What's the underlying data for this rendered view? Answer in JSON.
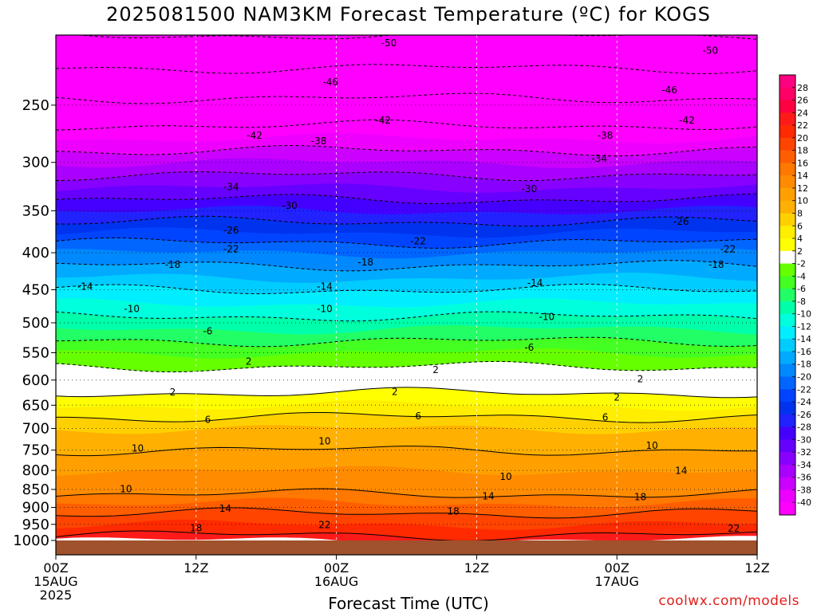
{
  "title": "2025081500 NAM3KM Forecast Temperature (ºC) for KOGS",
  "watermark": "coolwx.com/models",
  "chart_data": {
    "type": "heatmap",
    "title": "2025081500 NAM3KM Forecast Temperature (ºC) for KOGS",
    "xlabel": "Forecast Time (UTC)",
    "ylabel": "",
    "x_ticks": [
      {
        "hour": 0,
        "label": [
          "00Z",
          "15AUG",
          "2025"
        ]
      },
      {
        "hour": 12,
        "label": [
          "12Z"
        ]
      },
      {
        "hour": 24,
        "label": [
          "00Z",
          "16AUG"
        ]
      },
      {
        "hour": 36,
        "label": [
          "12Z"
        ]
      },
      {
        "hour": 48,
        "label": [
          "00Z",
          "17AUG"
        ]
      },
      {
        "hour": 60,
        "label": [
          "12Z"
        ]
      }
    ],
    "xlim": [
      0,
      60
    ],
    "y_ticks": [
      250,
      300,
      350,
      400,
      450,
      500,
      550,
      600,
      650,
      700,
      750,
      800,
      850,
      900,
      950,
      1000
    ],
    "ylim_hpa": [
      200,
      1000
    ],
    "y_scale": "log",
    "colorbar_levels": [
      28,
      26,
      24,
      22,
      20,
      18,
      16,
      14,
      12,
      10,
      8,
      6,
      4,
      2,
      -2,
      -4,
      -6,
      -8,
      -10,
      -12,
      -14,
      -16,
      -18,
      -20,
      -22,
      -24,
      -26,
      -28,
      -30,
      -32,
      -34,
      -36,
      -38,
      -40
    ],
    "colorbar_colors": [
      "#ff0080",
      "#ff0066",
      "#ff0040",
      "#ff1a1a",
      "#ff2a00",
      "#ff4400",
      "#ff5e00",
      "#ff7800",
      "#ff8c00",
      "#ffa000",
      "#ffb000",
      "#ffd000",
      "#ffee00",
      "#ffff00",
      "#ffffff",
      "#66ff00",
      "#44ff22",
      "#22ff66",
      "#00ffaa",
      "#00ffdd",
      "#00eeff",
      "#00ccff",
      "#00aaff",
      "#0088ff",
      "#0066ff",
      "#0044ff",
      "#0033ee",
      "#2222ff",
      "#4400ff",
      "#6600ff",
      "#8800ff",
      "#aa00ff",
      "#cc00ff",
      "#ee00ff",
      "#ff00ff"
    ],
    "level_temperature_profile": [
      {
        "p": 200,
        "t": -54
      },
      {
        "p": 250,
        "t": -45
      },
      {
        "p": 300,
        "t": -36
      },
      {
        "p": 350,
        "t": -28
      },
      {
        "p": 400,
        "t": -20
      },
      {
        "p": 450,
        "t": -14
      },
      {
        "p": 500,
        "t": -9
      },
      {
        "p": 550,
        "t": -4
      },
      {
        "p": 600,
        "t": 0
      },
      {
        "p": 650,
        "t": 4
      },
      {
        "p": 700,
        "t": 8
      },
      {
        "p": 750,
        "t": 10
      },
      {
        "p": 800,
        "t": 12
      },
      {
        "p": 850,
        "t": 13
      },
      {
        "p": 900,
        "t": 17
      },
      {
        "p": 950,
        "t": 20
      },
      {
        "p": 1000,
        "t": 23
      }
    ],
    "contour_labels": [
      {
        "hour": 28.5,
        "p": 205,
        "v": "-50"
      },
      {
        "hour": 56,
        "p": 210,
        "v": "-50"
      },
      {
        "hour": 23.5,
        "p": 232,
        "v": "-46"
      },
      {
        "hour": 52.5,
        "p": 238,
        "v": "-46"
      },
      {
        "hour": 28,
        "p": 262,
        "v": "-42"
      },
      {
        "hour": 17,
        "p": 275,
        "v": "-42"
      },
      {
        "hour": 54,
        "p": 262,
        "v": "-42"
      },
      {
        "hour": 22.5,
        "p": 280,
        "v": "-38"
      },
      {
        "hour": 47,
        "p": 275,
        "v": "-38"
      },
      {
        "hour": 46.5,
        "p": 296,
        "v": "-34"
      },
      {
        "hour": 15,
        "p": 324,
        "v": "-34"
      },
      {
        "hour": 40.5,
        "p": 326,
        "v": "-30"
      },
      {
        "hour": 20,
        "p": 344,
        "v": "-30"
      },
      {
        "hour": 53.5,
        "p": 362,
        "v": "-26"
      },
      {
        "hour": 15,
        "p": 372,
        "v": "-26"
      },
      {
        "hour": 31,
        "p": 385,
        "v": "-22"
      },
      {
        "hour": 15,
        "p": 395,
        "v": "-22"
      },
      {
        "hour": 57.5,
        "p": 395,
        "v": "-22"
      },
      {
        "hour": 10,
        "p": 415,
        "v": "-18"
      },
      {
        "hour": 26.5,
        "p": 412,
        "v": "-18"
      },
      {
        "hour": 56.5,
        "p": 415,
        "v": "-18"
      },
      {
        "hour": 2.5,
        "p": 445,
        "v": "-14"
      },
      {
        "hour": 23,
        "p": 445,
        "v": "-14"
      },
      {
        "hour": 41,
        "p": 440,
        "v": "-14"
      },
      {
        "hour": 6.5,
        "p": 478,
        "v": "-10"
      },
      {
        "hour": 23,
        "p": 478,
        "v": "-10"
      },
      {
        "hour": 42,
        "p": 490,
        "v": "-10"
      },
      {
        "hour": 13,
        "p": 513,
        "v": "-6"
      },
      {
        "hour": 40.5,
        "p": 540,
        "v": "-6"
      },
      {
        "hour": 16.5,
        "p": 565,
        "v": "2"
      },
      {
        "hour": 32.5,
        "p": 580,
        "v": "2"
      },
      {
        "hour": 50,
        "p": 597,
        "v": "2"
      },
      {
        "hour": 10,
        "p": 623,
        "v": "2"
      },
      {
        "hour": 29,
        "p": 622,
        "v": "2"
      },
      {
        "hour": 48,
        "p": 633,
        "v": "2"
      },
      {
        "hour": 13,
        "p": 680,
        "v": "6"
      },
      {
        "hour": 31,
        "p": 672,
        "v": "6"
      },
      {
        "hour": 47,
        "p": 675,
        "v": "6"
      },
      {
        "hour": 7,
        "p": 745,
        "v": "10"
      },
      {
        "hour": 23,
        "p": 728,
        "v": "10"
      },
      {
        "hour": 51,
        "p": 738,
        "v": "10"
      },
      {
        "hour": 6,
        "p": 848,
        "v": "10"
      },
      {
        "hour": 38.5,
        "p": 815,
        "v": "10"
      },
      {
        "hour": 53.5,
        "p": 800,
        "v": "14"
      },
      {
        "hour": 14.5,
        "p": 902,
        "v": "14"
      },
      {
        "hour": 37,
        "p": 868,
        "v": "14"
      },
      {
        "hour": 50,
        "p": 870,
        "v": "18"
      },
      {
        "hour": 34,
        "p": 910,
        "v": "18"
      },
      {
        "hour": 12,
        "p": 960,
        "v": "18"
      },
      {
        "hour": 23,
        "p": 950,
        "v": "22"
      },
      {
        "hour": 58,
        "p": 962,
        "v": "22"
      }
    ]
  }
}
